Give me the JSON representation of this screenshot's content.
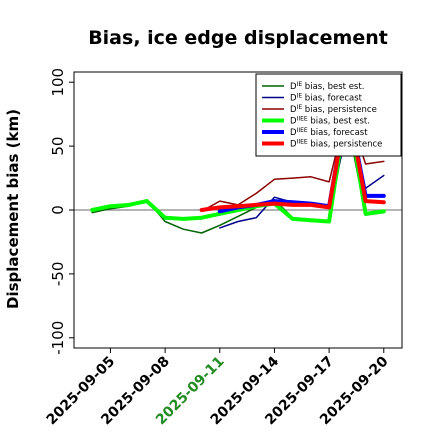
{
  "chart_data": {
    "type": "line",
    "title": "Bias, ice edge displacement",
    "xlabel": "",
    "ylabel": "Displacement bias (km)",
    "ylim": [
      -108,
      108
    ],
    "yticks": [
      -100,
      -50,
      0,
      50,
      100
    ],
    "xlim": [
      "2025-09-03",
      "2025-09-21"
    ],
    "xticks": [
      "2025-09-05",
      "2025-09-08",
      "2025-09-11",
      "2025-09-14",
      "2025-09-17",
      "2025-09-20"
    ],
    "xtick_colors": [
      "#000000",
      "#000000",
      "#228B22",
      "#000000",
      "#000000",
      "#000000"
    ],
    "zero_line": true,
    "legend_position": "top-right",
    "series": [
      {
        "name": "D^IE bias, best est.",
        "color": "#006400",
        "width": 1.5,
        "x": [
          "2025-09-04",
          "2025-09-05",
          "2025-09-06",
          "2025-09-07",
          "2025-09-08",
          "2025-09-09",
          "2025-09-10",
          "2025-09-11",
          "2025-09-12",
          "2025-09-13",
          "2025-09-14",
          "2025-09-15",
          "2025-09-16",
          "2025-09-17",
          "2025-09-18",
          "2025-09-19",
          "2025-09-20"
        ],
        "y": [
          -2,
          1,
          3,
          8,
          -9,
          -15,
          -18,
          -12,
          -5,
          2,
          8,
          -6,
          -9,
          -9,
          70,
          -4,
          -2
        ]
      },
      {
        "name": "D^IE bias, forecast",
        "color": "#00008B",
        "width": 1.5,
        "x": [
          "2025-09-11",
          "2025-09-12",
          "2025-09-13",
          "2025-09-14",
          "2025-09-15",
          "2025-09-16",
          "2025-09-17",
          "2025-09-18",
          "2025-09-19",
          "2025-09-20"
        ],
        "y": [
          -14,
          -9,
          -6,
          10,
          6,
          5,
          2,
          62,
          17,
          27
        ]
      },
      {
        "name": "D^IE bias, persistence",
        "color": "#8B0000",
        "width": 1.5,
        "x": [
          "2025-09-10",
          "2025-09-11",
          "2025-09-12",
          "2025-09-13",
          "2025-09-14",
          "2025-09-15",
          "2025-09-16",
          "2025-09-17",
          "2025-09-18",
          "2025-09-19",
          "2025-09-20"
        ],
        "y": [
          -1,
          7,
          4,
          13,
          24,
          25,
          26,
          22,
          80,
          36,
          38
        ]
      },
      {
        "name": "D^IIEE bias, best est.",
        "color": "#00FF00",
        "width": 4,
        "x": [
          "2025-09-04",
          "2025-09-05",
          "2025-09-06",
          "2025-09-07",
          "2025-09-08",
          "2025-09-09",
          "2025-09-10",
          "2025-09-11",
          "2025-09-12",
          "2025-09-13",
          "2025-09-14",
          "2025-09-15",
          "2025-09-16",
          "2025-09-17",
          "2025-09-18",
          "2025-09-19",
          "2025-09-20"
        ],
        "y": [
          0,
          3,
          4,
          7,
          -6,
          -7,
          -6,
          -3,
          0,
          3,
          5,
          -7,
          -8,
          -9,
          85,
          -3,
          -1
        ]
      },
      {
        "name": "D^IIEE bias, forecast",
        "color": "#0000FF",
        "width": 4,
        "x": [
          "2025-09-11",
          "2025-09-12",
          "2025-09-13",
          "2025-09-14",
          "2025-09-15",
          "2025-09-16",
          "2025-09-17",
          "2025-09-18",
          "2025-09-19",
          "2025-09-20"
        ],
        "y": [
          -1,
          2,
          4,
          7,
          6,
          5,
          3,
          85,
          11,
          11
        ]
      },
      {
        "name": "D^IIEE bias, persistence",
        "color": "#FF0000",
        "width": 4,
        "x": [
          "2025-09-10",
          "2025-09-11",
          "2025-09-12",
          "2025-09-13",
          "2025-09-14",
          "2025-09-15",
          "2025-09-16",
          "2025-09-17",
          "2025-09-18",
          "2025-09-19",
          "2025-09-20"
        ],
        "y": [
          0,
          2,
          3,
          4,
          5,
          4,
          4,
          2,
          85,
          7,
          6
        ]
      }
    ]
  }
}
